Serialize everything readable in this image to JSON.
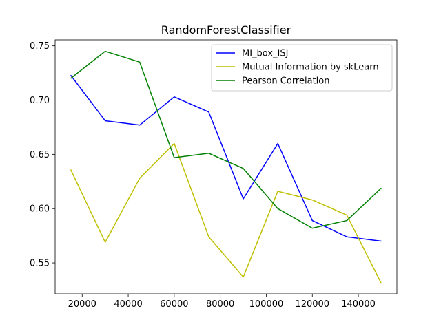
{
  "chart_data": {
    "type": "line",
    "title": "RandomForestClassifier",
    "xlabel": "",
    "ylabel": "",
    "x": [
      15000,
      30000,
      45000,
      60000,
      75000,
      90000,
      105000,
      120000,
      135000,
      150000
    ],
    "xlim": [
      8250,
      156750
    ],
    "ylim": [
      0.5215,
      0.7555
    ],
    "xticks": [
      20000,
      40000,
      60000,
      80000,
      100000,
      120000,
      140000
    ],
    "xtick_labels": [
      "20000",
      "40000",
      "60000",
      "80000",
      "100000",
      "120000",
      "140000"
    ],
    "yticks": [
      0.55,
      0.6,
      0.65,
      0.7,
      0.75
    ],
    "ytick_labels": [
      "0.55",
      "0.60",
      "0.65",
      "0.70",
      "0.75"
    ],
    "grid": false,
    "legend_position": "top-right",
    "series": [
      {
        "name": "MI_box_ISJ",
        "color": "#0000ff",
        "values": [
          0.723,
          0.681,
          0.677,
          0.703,
          0.689,
          0.609,
          0.66,
          0.589,
          0.574,
          0.57
        ]
      },
      {
        "name": "Mutual Information by skLearn",
        "color": "#bfbf00",
        "values": [
          0.636,
          0.569,
          0.628,
          0.66,
          0.574,
          0.537,
          0.616,
          0.608,
          0.594,
          0.531
        ]
      },
      {
        "name": "Pearson Correlation",
        "color": "#008000",
        "values": [
          0.72,
          0.745,
          0.735,
          0.647,
          0.651,
          0.637,
          0.6,
          0.582,
          0.589,
          0.619
        ]
      }
    ]
  }
}
